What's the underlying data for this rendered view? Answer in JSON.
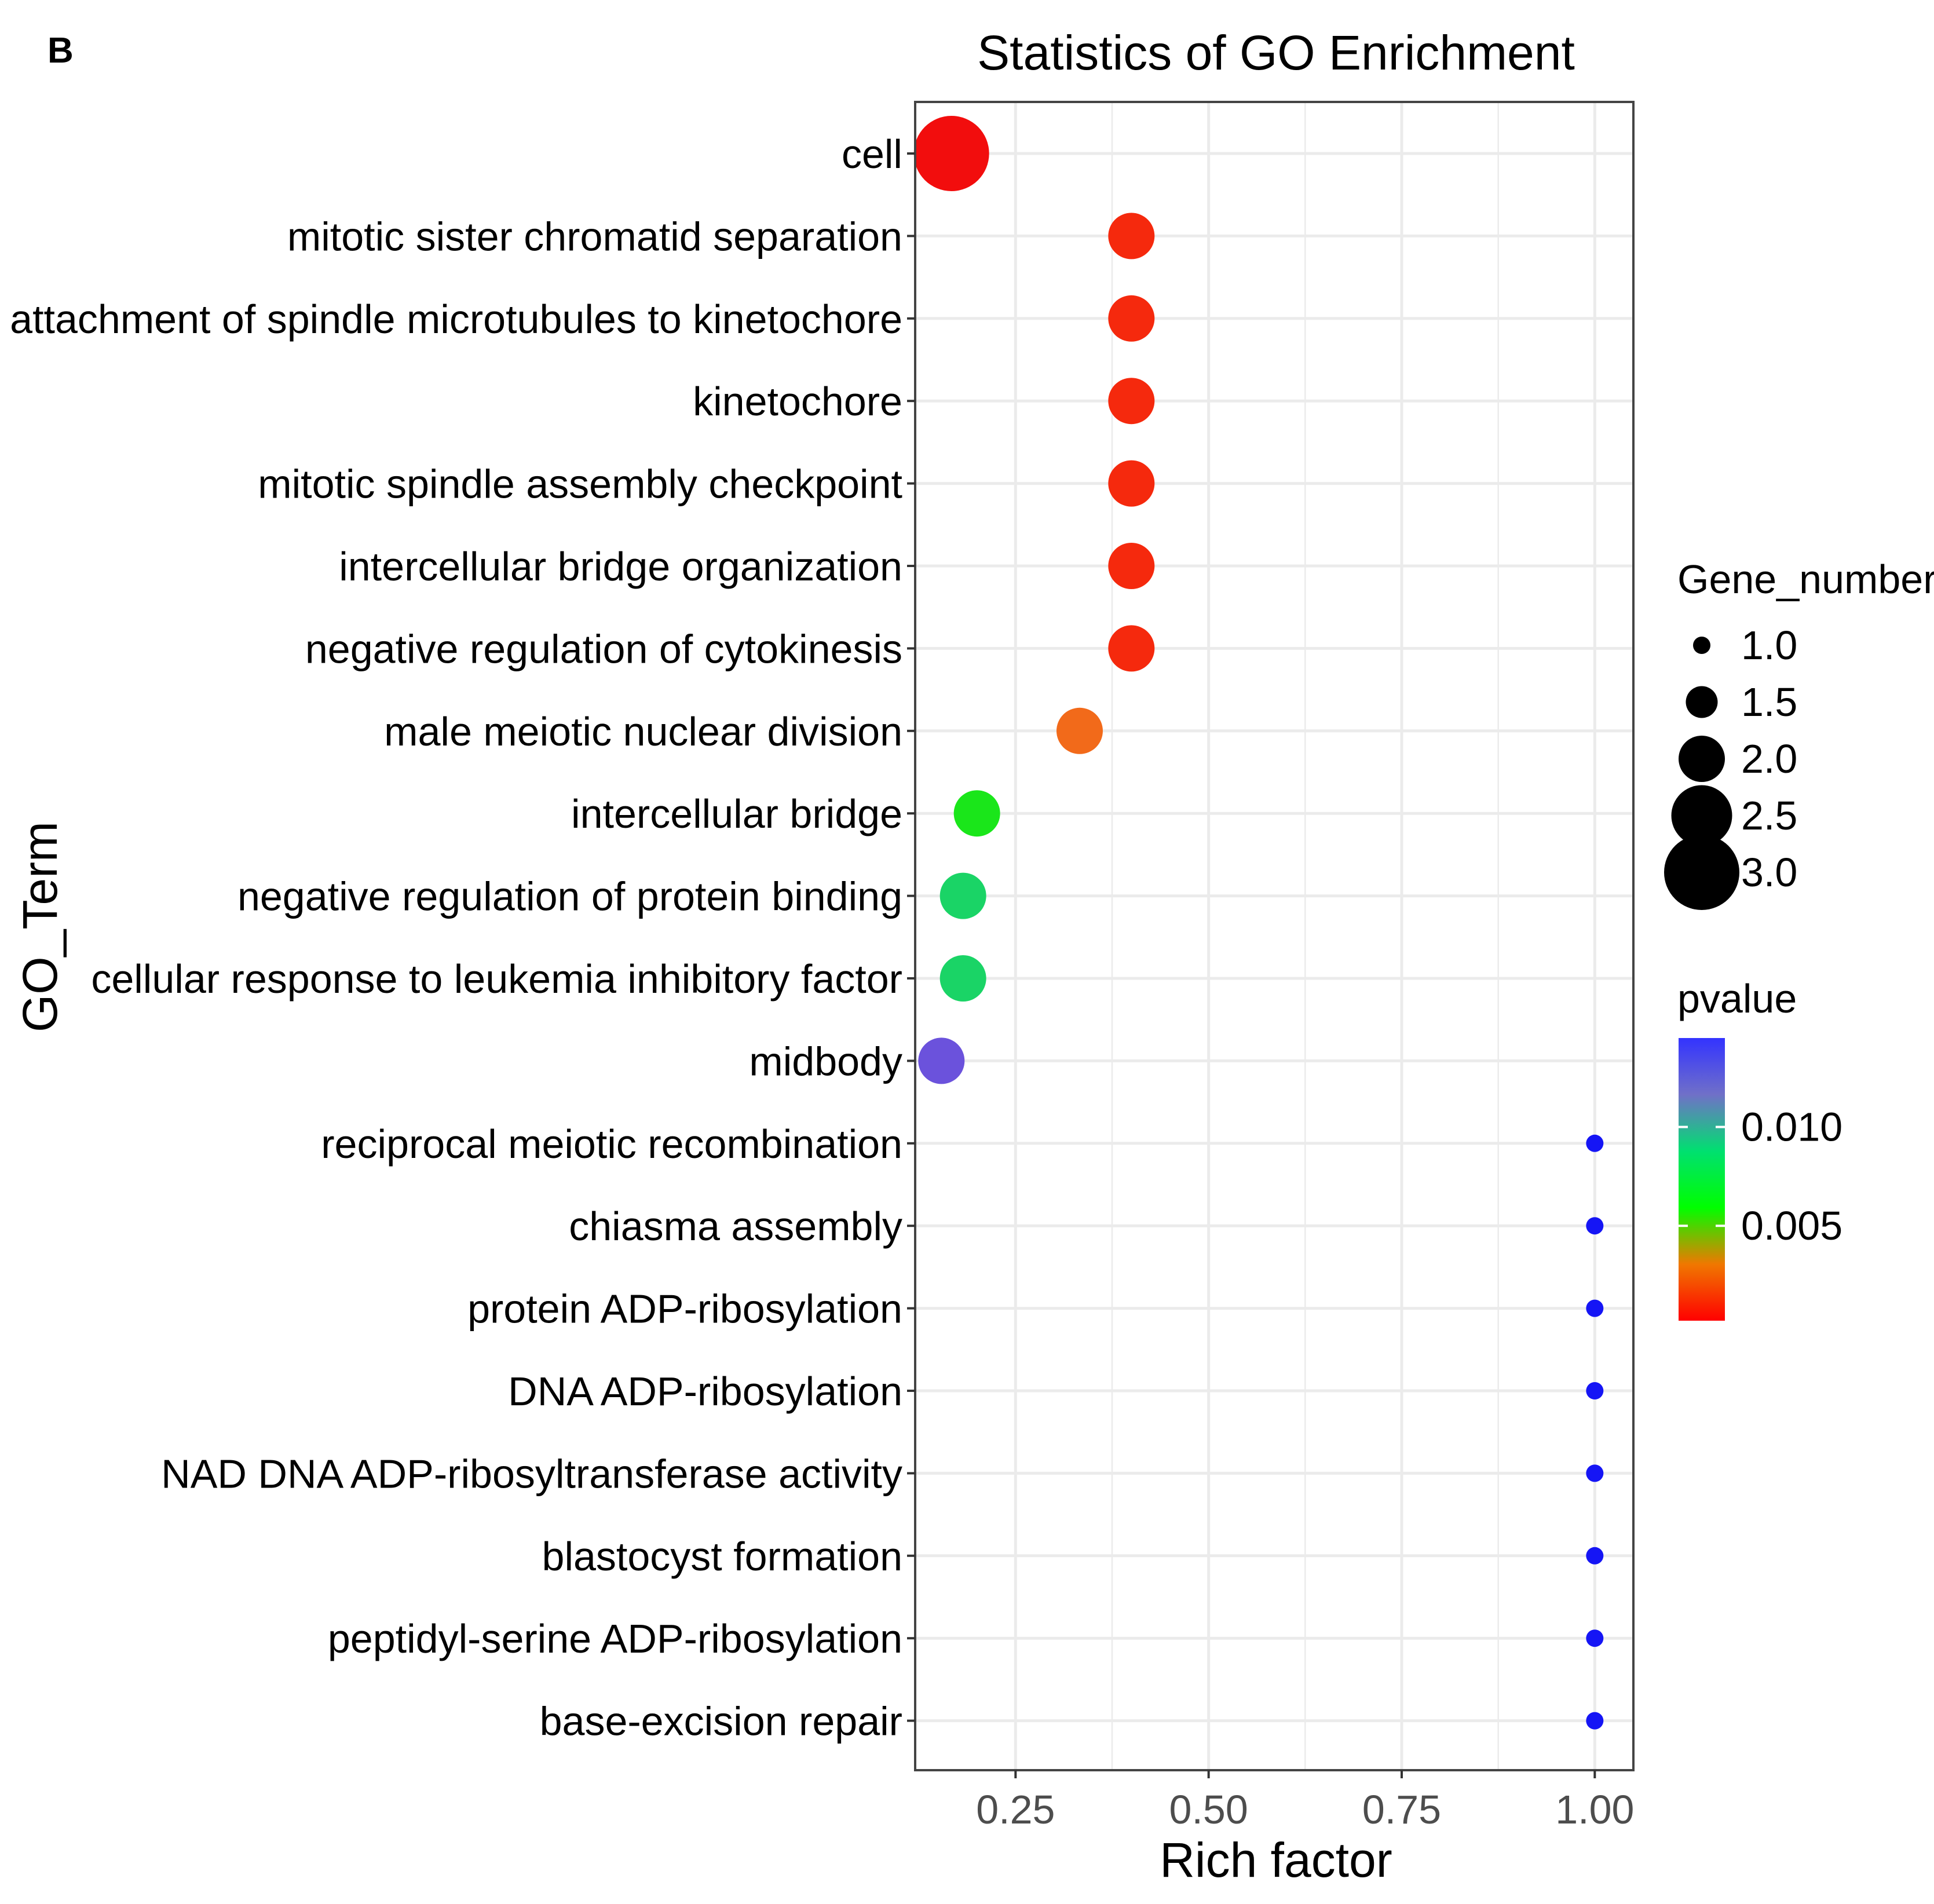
{
  "panel_label": "B",
  "chart_data": {
    "type": "scatter",
    "title": "Statistics of GO Enrichment",
    "xlabel": "Rich factor",
    "ylabel": "GO_Term",
    "xlim": [
      0.12,
      1.05
    ],
    "x_ticks": [
      0.25,
      0.5,
      0.75,
      1.0
    ],
    "x_tick_labels": [
      "0.25",
      "0.50",
      "0.75",
      "1.00"
    ],
    "grid": true,
    "points": [
      {
        "term": "cell",
        "rich_factor": 0.167,
        "gene_number": 3,
        "pvalue": 0.0002,
        "color": "#f20d0d"
      },
      {
        "term": "mitotic sister chromatid separation",
        "rich_factor": 0.4,
        "gene_number": 2,
        "pvalue": 0.0006,
        "color": "#f5290d"
      },
      {
        "term": "attachment of spindle microtubules to kinetochore",
        "rich_factor": 0.4,
        "gene_number": 2,
        "pvalue": 0.0006,
        "color": "#f5290d"
      },
      {
        "term": "kinetochore",
        "rich_factor": 0.4,
        "gene_number": 2,
        "pvalue": 0.0006,
        "color": "#f5290d"
      },
      {
        "term": "mitotic spindle assembly checkpoint",
        "rich_factor": 0.4,
        "gene_number": 2,
        "pvalue": 0.0006,
        "color": "#f5290d"
      },
      {
        "term": "intercellular bridge organization",
        "rich_factor": 0.4,
        "gene_number": 2,
        "pvalue": 0.0006,
        "color": "#f5290d"
      },
      {
        "term": "negative regulation of cytokinesis",
        "rich_factor": 0.4,
        "gene_number": 2,
        "pvalue": 0.0006,
        "color": "#f5290d"
      },
      {
        "term": "male meiotic nuclear division",
        "rich_factor": 0.333,
        "gene_number": 2,
        "pvalue": 0.0015,
        "color": "#f26a1a"
      },
      {
        "term": "intercellular bridge",
        "rich_factor": 0.2,
        "gene_number": 2,
        "pvalue": 0.0075,
        "color": "#1ae61a"
      },
      {
        "term": "negative regulation of protein binding",
        "rich_factor": 0.182,
        "gene_number": 2,
        "pvalue": 0.009,
        "color": "#1ad466"
      },
      {
        "term": "cellular response to leukemia inhibitory factor",
        "rich_factor": 0.182,
        "gene_number": 2,
        "pvalue": 0.009,
        "color": "#1ad466"
      },
      {
        "term": "midbody",
        "rich_factor": 0.154,
        "gene_number": 2,
        "pvalue": 0.0125,
        "color": "#6b52dc"
      },
      {
        "term": "reciprocal meiotic recombination",
        "rich_factor": 1.0,
        "gene_number": 1,
        "pvalue": 0.014,
        "color": "#1515f5"
      },
      {
        "term": "chiasma assembly",
        "rich_factor": 1.0,
        "gene_number": 1,
        "pvalue": 0.014,
        "color": "#1515f5"
      },
      {
        "term": "protein ADP-ribosylation",
        "rich_factor": 1.0,
        "gene_number": 1,
        "pvalue": 0.014,
        "color": "#1515f5"
      },
      {
        "term": "DNA ADP-ribosylation",
        "rich_factor": 1.0,
        "gene_number": 1,
        "pvalue": 0.014,
        "color": "#1515f5"
      },
      {
        "term": "NAD DNA ADP-ribosyltransferase activity",
        "rich_factor": 1.0,
        "gene_number": 1,
        "pvalue": 0.014,
        "color": "#1515f5"
      },
      {
        "term": "blastocyst formation",
        "rich_factor": 1.0,
        "gene_number": 1,
        "pvalue": 0.014,
        "color": "#1515f5"
      },
      {
        "term": "peptidyl-serine ADP-ribosylation",
        "rich_factor": 1.0,
        "gene_number": 1,
        "pvalue": 0.014,
        "color": "#1515f5"
      },
      {
        "term": "base-excision repair",
        "rich_factor": 1.0,
        "gene_number": 1,
        "pvalue": 0.014,
        "color": "#1515f5"
      }
    ],
    "legend_size": {
      "title": "Gene_number",
      "values": [
        1.0,
        1.5,
        2.0,
        2.5,
        3.0
      ],
      "labels": [
        "1.0",
        "1.5",
        "2.0",
        "2.5",
        "3.0"
      ]
    },
    "legend_color": {
      "title": "pvalue",
      "range": [
        0.0002,
        0.0145
      ],
      "tick_values": [
        0.01,
        0.005
      ],
      "tick_labels": [
        "0.010",
        "0.005"
      ],
      "gradient": [
        "#ff0000",
        "#f07800",
        "#00ff00",
        "#00e070",
        "#7070c8",
        "#3333ff"
      ]
    },
    "colors": {
      "panel_border": "#444444",
      "grid": "#ebebeb",
      "text": "#000000",
      "tick_label": "#4d4d4d",
      "legend_key": "#000000"
    }
  }
}
